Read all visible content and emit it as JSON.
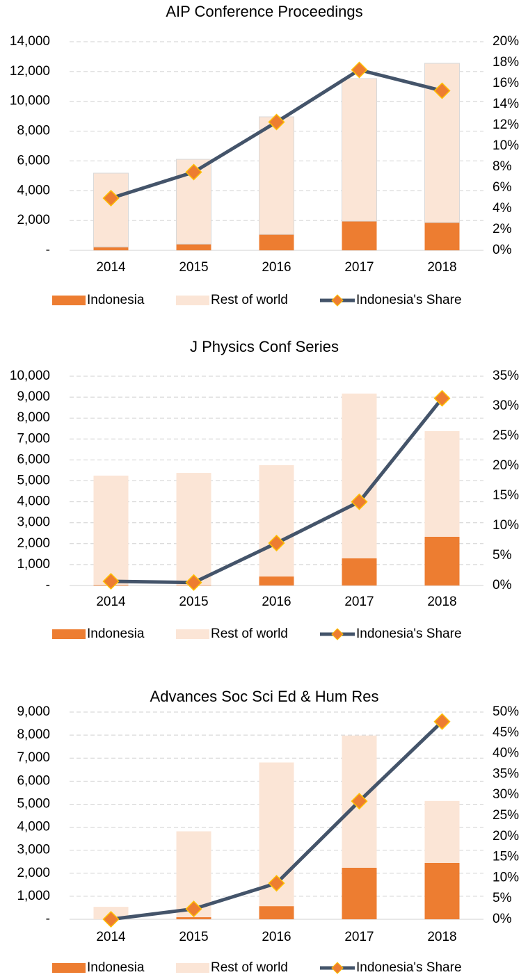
{
  "chart_data": [
    {
      "type": "bar",
      "stacked": true,
      "title": "AIP Conference Proceedings",
      "categories": [
        "2014",
        "2015",
        "2016",
        "2017",
        "2018"
      ],
      "series": [
        {
          "name": "Indonesia",
          "color": "#ed7d31",
          "values": [
            230,
            420,
            1070,
            1960,
            1870
          ]
        },
        {
          "name": "Rest of world",
          "color": "#fbe5d6",
          "values": [
            4950,
            5690,
            7890,
            9570,
            10680
          ]
        },
        {
          "name": "Indonesia's Share",
          "type": "line",
          "axis": "y2",
          "color": "#44546a",
          "marker_color": "#ed7d31",
          "values": [
            5.0,
            7.5,
            12.3,
            17.3,
            15.3
          ]
        }
      ],
      "ylim": [
        0,
        14000
      ],
      "yticks": [
        {
          "value": 0,
          "label": "-"
        },
        {
          "value": 2000,
          "label": "2,000"
        },
        {
          "value": 4000,
          "label": "4,000"
        },
        {
          "value": 6000,
          "label": "6,000"
        },
        {
          "value": 8000,
          "label": "8,000"
        },
        {
          "value": 10000,
          "label": "10,000"
        },
        {
          "value": 12000,
          "label": "12,000"
        },
        {
          "value": 14000,
          "label": "14,000"
        }
      ],
      "y2lim": [
        0,
        20
      ],
      "y2ticks": [
        {
          "value": 0,
          "label": "0%"
        },
        {
          "value": 2,
          "label": "2%"
        },
        {
          "value": 4,
          "label": "4%"
        },
        {
          "value": 6,
          "label": "6%"
        },
        {
          "value": 8,
          "label": "8%"
        },
        {
          "value": 10,
          "label": "10%"
        },
        {
          "value": 12,
          "label": "12%"
        },
        {
          "value": 14,
          "label": "14%"
        },
        {
          "value": 16,
          "label": "16%"
        },
        {
          "value": 18,
          "label": "18%"
        },
        {
          "value": 20,
          "label": "20%"
        }
      ],
      "grid": true,
      "legend": "bottom"
    },
    {
      "type": "bar",
      "stacked": true,
      "title": "J Physics Conf Series",
      "categories": [
        "2014",
        "2015",
        "2016",
        "2017",
        "2018"
      ],
      "series": [
        {
          "name": "Indonesia",
          "color": "#ed7d31",
          "values": [
            30,
            20,
            430,
            1300,
            2330
          ]
        },
        {
          "name": "Rest of world",
          "color": "#fbe5d6",
          "values": [
            5220,
            5360,
            5320,
            7870,
            5050
          ]
        },
        {
          "name": "Indonesia's Share",
          "type": "line",
          "axis": "y2",
          "color": "#44546a",
          "marker_color": "#ed7d31",
          "values": [
            0.7,
            0.5,
            7.1,
            14.0,
            31.3
          ]
        }
      ],
      "ylim": [
        0,
        10000
      ],
      "yticks": [
        {
          "value": 0,
          "label": "-"
        },
        {
          "value": 1000,
          "label": "1,000"
        },
        {
          "value": 2000,
          "label": "2,000"
        },
        {
          "value": 3000,
          "label": "3,000"
        },
        {
          "value": 4000,
          "label": "4,000"
        },
        {
          "value": 5000,
          "label": "5,000"
        },
        {
          "value": 6000,
          "label": "6,000"
        },
        {
          "value": 7000,
          "label": "7,000"
        },
        {
          "value": 8000,
          "label": "8,000"
        },
        {
          "value": 9000,
          "label": "9,000"
        },
        {
          "value": 10000,
          "label": "10,000"
        }
      ],
      "y2lim": [
        0,
        35
      ],
      "y2ticks": [
        {
          "value": 0,
          "label": "0%"
        },
        {
          "value": 5,
          "label": "5%"
        },
        {
          "value": 10,
          "label": "10%"
        },
        {
          "value": 15,
          "label": "15%"
        },
        {
          "value": 20,
          "label": "20%"
        },
        {
          "value": 25,
          "label": "25%"
        },
        {
          "value": 30,
          "label": "30%"
        },
        {
          "value": 35,
          "label": "35%"
        }
      ],
      "grid": true,
      "legend": "bottom"
    },
    {
      "type": "bar",
      "stacked": true,
      "title": "Advances Soc Sci Ed & Hum Res",
      "categories": [
        "2014",
        "2015",
        "2016",
        "2017",
        "2018"
      ],
      "series": [
        {
          "name": "Indonesia",
          "color": "#ed7d31",
          "values": [
            0,
            90,
            570,
            2240,
            2450
          ]
        },
        {
          "name": "Rest of world",
          "color": "#fbe5d6",
          "values": [
            540,
            3730,
            6240,
            5740,
            2690
          ]
        },
        {
          "name": "Indonesia's Share",
          "type": "line",
          "axis": "y2",
          "color": "#44546a",
          "marker_color": "#ed7d31",
          "values": [
            0,
            2.5,
            8.7,
            28.5,
            47.7
          ]
        }
      ],
      "ylim": [
        0,
        9000
      ],
      "yticks": [
        {
          "value": 0,
          "label": "-"
        },
        {
          "value": 1000,
          "label": "1,000"
        },
        {
          "value": 2000,
          "label": "2,000"
        },
        {
          "value": 3000,
          "label": "3,000"
        },
        {
          "value": 4000,
          "label": "4,000"
        },
        {
          "value": 5000,
          "label": "5,000"
        },
        {
          "value": 6000,
          "label": "6,000"
        },
        {
          "value": 7000,
          "label": "7,000"
        },
        {
          "value": 8000,
          "label": "8,000"
        },
        {
          "value": 9000,
          "label": "9,000"
        }
      ],
      "y2lim": [
        0,
        50
      ],
      "y2ticks": [
        {
          "value": 0,
          "label": "0%"
        },
        {
          "value": 5,
          "label": "5%"
        },
        {
          "value": 10,
          "label": "10%"
        },
        {
          "value": 15,
          "label": "15%"
        },
        {
          "value": 20,
          "label": "20%"
        },
        {
          "value": 25,
          "label": "25%"
        },
        {
          "value": 30,
          "label": "30%"
        },
        {
          "value": 35,
          "label": "35%"
        },
        {
          "value": 40,
          "label": "40%"
        },
        {
          "value": 45,
          "label": "45%"
        },
        {
          "value": 50,
          "label": "50%"
        }
      ],
      "grid": true,
      "legend": "bottom"
    }
  ]
}
